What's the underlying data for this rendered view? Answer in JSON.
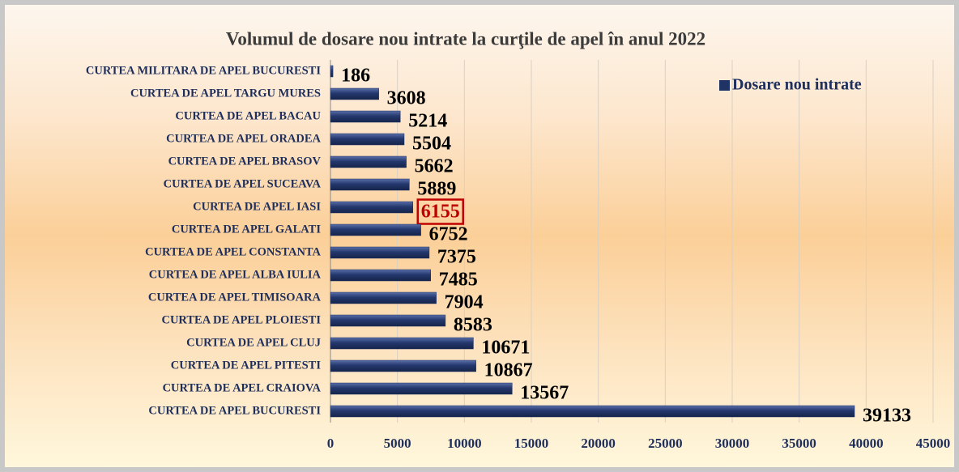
{
  "chart_data": {
    "type": "bar",
    "orientation": "horizontal",
    "title": "Volumul de dosare nou intrate la curţile de apel în anul 2022",
    "categories": [
      "CURTEA MILITARA DE APEL BUCURESTI",
      "CURTEA DE APEL TARGU MURES",
      "CURTEA DE APEL BACAU",
      "CURTEA DE APEL ORADEA",
      "CURTEA DE APEL BRASOV",
      "CURTEA DE APEL SUCEAVA",
      "CURTEA DE APEL IASI",
      "CURTEA DE APEL GALATI",
      "CURTEA DE APEL CONSTANTA",
      "CURTEA DE APEL ALBA IULIA",
      "CURTEA DE APEL TIMISOARA",
      "CURTEA DE APEL PLOIESTI",
      "CURTEA DE APEL CLUJ",
      "CURTEA DE APEL PITESTI",
      "CURTEA DE APEL CRAIOVA",
      "CURTEA DE APEL BUCURESTI"
    ],
    "series": [
      {
        "name": "Dosare nou intrate",
        "color": "#1f3364",
        "values": [
          186,
          3608,
          5214,
          5504,
          5662,
          5889,
          6155,
          6752,
          7375,
          7485,
          7904,
          8583,
          10671,
          10867,
          13567,
          39133
        ]
      }
    ],
    "highlight_index": 6,
    "highlight_color": "#c00000",
    "xlim": [
      0,
      45000
    ],
    "xticks": [
      0,
      5000,
      10000,
      15000,
      20000,
      25000,
      30000,
      35000,
      40000,
      45000
    ],
    "grid": true,
    "legend": "top-right"
  }
}
